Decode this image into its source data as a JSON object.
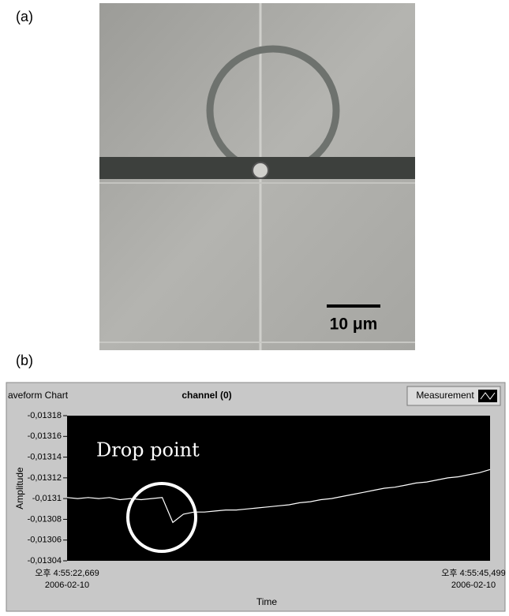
{
  "figure": {
    "panel_a_label": "(a)",
    "panel_b_label": "(b)",
    "scale_bar_label": "10 μm"
  },
  "chart_data": {
    "type": "line",
    "window_title": "aveform Chart",
    "title": "channel (0)",
    "legend_label": "Measurement",
    "y_label": "Amplitude",
    "x_label": "Time",
    "annotation": "Drop point",
    "x_start_label": [
      "오후 4:55:22,669",
      "2006-02-10"
    ],
    "x_end_label": [
      "오후 4:55:45,499",
      "2006-02-10"
    ],
    "ylim": [
      -0.01304,
      -0.01318
    ],
    "yticks": [
      {
        "value": -0.01318,
        "label": "-0,01318"
      },
      {
        "value": -0.01316,
        "label": "-0,01316"
      },
      {
        "value": -0.01314,
        "label": "-0,01314"
      },
      {
        "value": -0.01312,
        "label": "-0,01312"
      },
      {
        "value": -0.0131,
        "label": "-0,0131"
      },
      {
        "value": -0.01308,
        "label": "-0,01308"
      },
      {
        "value": -0.01306,
        "label": "-0,01306"
      },
      {
        "value": -0.01304,
        "label": "-0,01304"
      }
    ],
    "color": "#ffffff",
    "values": [
      -0.013101,
      -0.0131,
      -0.013101,
      -0.0131,
      -0.013101,
      -0.013099,
      -0.0131,
      -0.013099,
      -0.0131,
      -0.013101,
      -0.013077,
      -0.013085,
      -0.013087,
      -0.013087,
      -0.013088,
      -0.013089,
      -0.013089,
      -0.01309,
      -0.013091,
      -0.013092,
      -0.013093,
      -0.013094,
      -0.013096,
      -0.013097,
      -0.013099,
      -0.0131,
      -0.013102,
      -0.013104,
      -0.013106,
      -0.013108,
      -0.01311,
      -0.013111,
      -0.013113,
      -0.013115,
      -0.013116,
      -0.013118,
      -0.01312,
      -0.013121,
      -0.013123,
      -0.013125,
      -0.013128
    ]
  }
}
